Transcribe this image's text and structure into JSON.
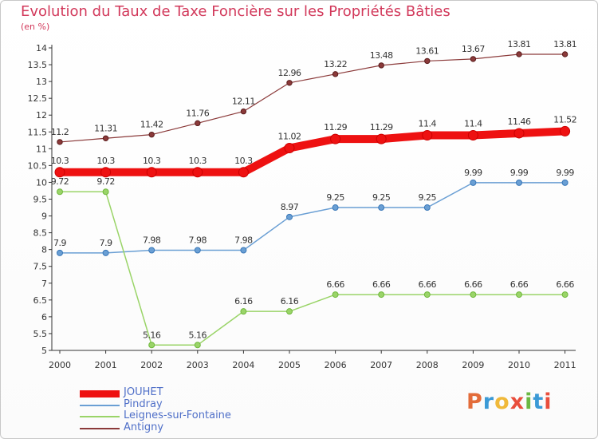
{
  "header": {
    "title": "Evolution du Taux de Taxe Foncière sur les Propriétés Bâties",
    "subtitle": "(en %)"
  },
  "logo": {
    "text": "Proxiti",
    "colors": [
      "#e36c3a",
      "#3b9ad6",
      "#f0b93a",
      "#e94e3c",
      "#6bb843",
      "#3b9ad6",
      "#e94e3c"
    ]
  },
  "chart_data": {
    "type": "line",
    "x": [
      "2000",
      "2001",
      "2002",
      "2003",
      "2004",
      "2005",
      "2006",
      "2007",
      "2008",
      "2009",
      "2010",
      "2011"
    ],
    "ylim": [
      5,
      14
    ],
    "yticks": [
      "5",
      "5.5",
      "6",
      "6.5",
      "7",
      "7.5",
      "8",
      "8.5",
      "9",
      "9.5",
      "10",
      "10.5",
      "11",
      "11.5",
      "12",
      "12.5",
      "13",
      "13.5",
      "14"
    ],
    "grid": false,
    "legend_position": "bottom-left",
    "series": [
      {
        "name": "JOUHET",
        "color": "#ee1111",
        "values": [
          10.3,
          10.3,
          10.3,
          10.3,
          10.3,
          11.02,
          11.29,
          11.29,
          11.4,
          11.4,
          11.46,
          11.52
        ],
        "labels": [
          "10.3",
          "10.3",
          "10.3",
          "10.3",
          "10.3",
          "11.02",
          "11.29",
          "11.29",
          "11.4",
          "11.4",
          "11.46",
          "11.52"
        ]
      },
      {
        "name": "Pindray",
        "color": "#6a9fd4",
        "values": [
          7.9,
          7.9,
          7.98,
          7.98,
          7.98,
          8.97,
          9.25,
          9.25,
          9.25,
          9.99,
          9.99,
          9.99
        ],
        "labels": [
          "7.9",
          "7.9",
          "7.98",
          "7.98",
          "7.98",
          "8.97",
          "9.25",
          "9.25",
          "9.25",
          "9.99",
          "9.99",
          "9.99"
        ]
      },
      {
        "name": "Leignes-sur-Fontaine",
        "color": "#9ad468",
        "values": [
          9.72,
          9.72,
          5.16,
          5.16,
          6.16,
          6.16,
          6.66,
          6.66,
          6.66,
          6.66,
          6.66,
          6.66
        ],
        "labels": [
          "9.72",
          "9.72",
          "5.16",
          "5.16",
          "6.16",
          "6.16",
          "6.66",
          "6.66",
          "6.66",
          "6.66",
          "6.66",
          "6.66"
        ]
      },
      {
        "name": "Antigny",
        "color": "#8b3a3a",
        "values": [
          11.2,
          11.31,
          11.42,
          11.76,
          12.11,
          12.96,
          13.22,
          13.48,
          13.61,
          13.67,
          13.81,
          13.81
        ],
        "labels": [
          "11.2",
          "11.31",
          "11.42",
          "11.76",
          "12.11",
          "12.96",
          "13.22",
          "13.48",
          "13.61",
          "13.67",
          "13.81",
          "13.81"
        ]
      }
    ]
  }
}
